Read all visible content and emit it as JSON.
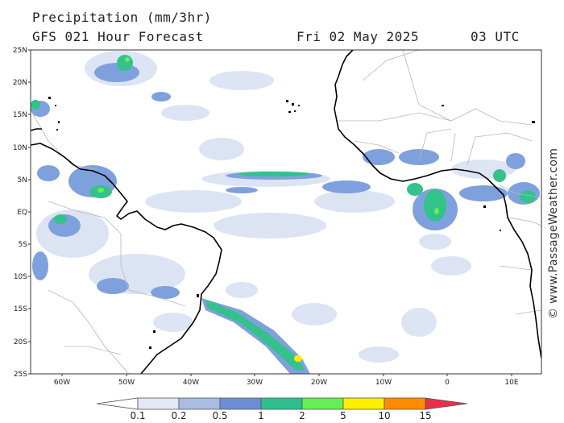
{
  "header": {
    "title": "Precipitation (mm/3hr)",
    "subtitle": "GFS 021 Hour Forecast",
    "date": "Fri 02 May 2025",
    "time": "03 UTC"
  },
  "map": {
    "lat_labels": [
      "25N",
      "20N",
      "15N",
      "10N",
      "5N",
      "EQ",
      "5S",
      "10S",
      "15S",
      "20S",
      "25S"
    ],
    "lon_labels": [
      "60W",
      "50W",
      "40W",
      "30W",
      "20W",
      "10W",
      "0",
      "10E"
    ],
    "region": "Tropical Atlantic Ocean"
  },
  "legend": {
    "levels": [
      "0.1",
      "0.2",
      "0.5",
      "1",
      "2",
      "5",
      "10",
      "15"
    ],
    "colors": [
      "#ffffff",
      "#e2e8f5",
      "#a9bde3",
      "#6d8ed6",
      "#2fbf8e",
      "#66ee55",
      "#ffee00",
      "#ff8c00",
      "#e8304a"
    ]
  },
  "watermark": "© www.PassageWeather.com",
  "colors": {
    "coast": "#000000",
    "border": "#b8b8b8",
    "light_rain": "#dbe3f3",
    "moderate_rain": "#7ea1de",
    "heavy_rain": "#33c28a"
  }
}
